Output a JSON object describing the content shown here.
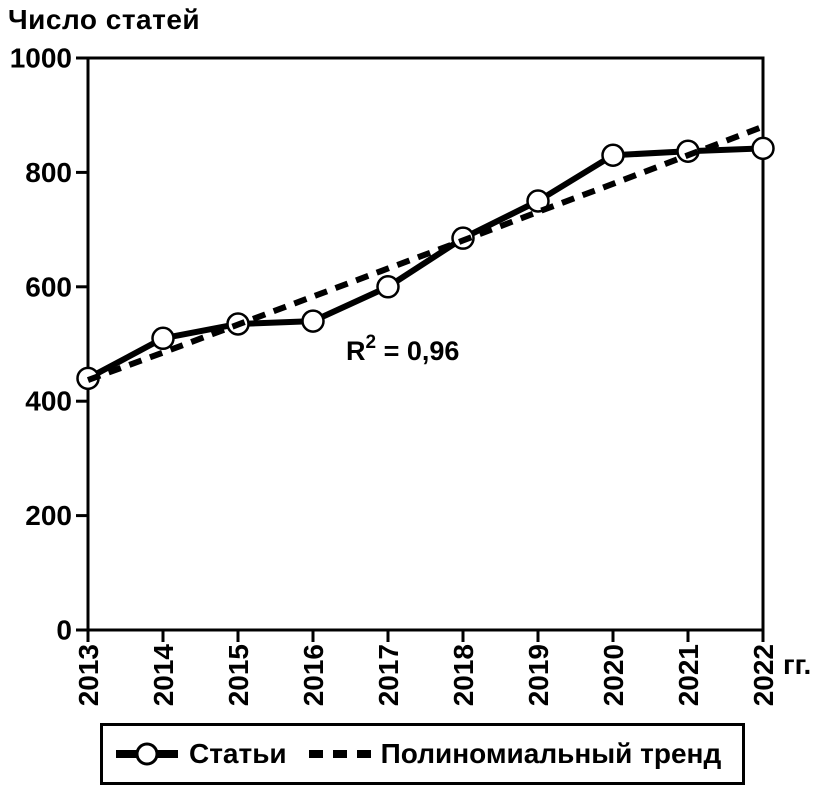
{
  "title": "Число статей",
  "axis_unit_label": "гг.",
  "annotation": {
    "base": "R",
    "sup": "2",
    "rest": " = 0,96",
    "full_text": "R² = 0,96"
  },
  "colors": {
    "foreground": "#000000",
    "background": "#ffffff",
    "marker_fill": "#ffffff"
  },
  "legend": {
    "position": "bottom",
    "items": [
      {
        "label": "Статьи",
        "marker": "solid-line-with-circle"
      },
      {
        "label": "Полиномиальный тренд",
        "marker": "dashed-line"
      }
    ]
  },
  "chart_data": {
    "type": "line",
    "title": "Число статей",
    "xlabel": "гг.",
    "ylabel": "Число статей",
    "categories": [
      "2013",
      "2014",
      "2015",
      "2016",
      "2017",
      "2018",
      "2019",
      "2020",
      "2021",
      "2022"
    ],
    "series": [
      {
        "name": "Статьи",
        "line_style": "solid",
        "marker": "circle",
        "values": [
          440,
          510,
          535,
          540,
          600,
          685,
          750,
          830,
          837,
          842
        ]
      },
      {
        "name": "Полиномиальный тренд",
        "line_style": "dashed",
        "marker": "none",
        "values": [
          437,
          485,
          534,
          583,
          632,
          681,
          731,
          780,
          830,
          880
        ]
      }
    ],
    "ylim": [
      0,
      1000
    ],
    "y_ticks": [
      0,
      200,
      400,
      600,
      800,
      1000
    ],
    "grid": false,
    "legend_position": "bottom",
    "annotation": "R² = 0,96"
  }
}
